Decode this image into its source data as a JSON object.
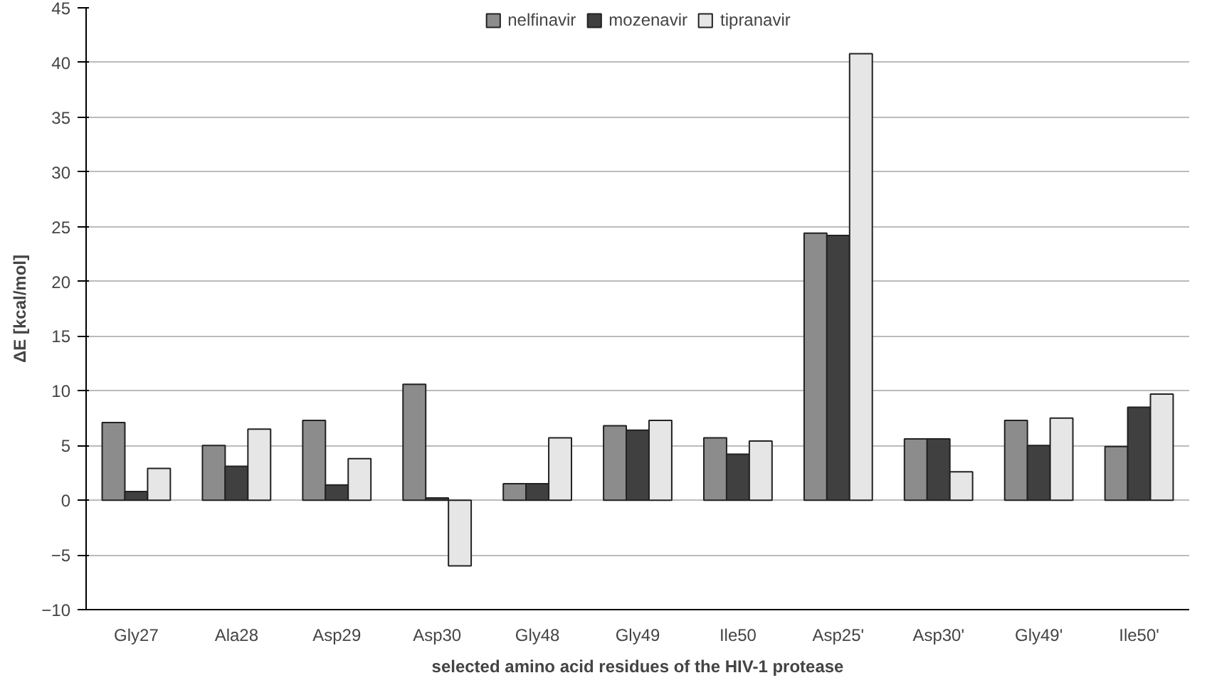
{
  "chart_data": {
    "type": "bar",
    "xlabel": "selected amino acid residues of the HIV-1 protease",
    "ylabel": "ΔE [kcal/mol]",
    "categories": [
      "Gly27",
      "Ala28",
      "Asp29",
      "Asp30",
      "Gly48",
      "Gly49",
      "Ile50",
      "Asp25'",
      "Asp30'",
      "Gly49'",
      "Ile50'"
    ],
    "series": [
      {
        "name": "nelfinavir",
        "color": "#8c8c8c",
        "values": [
          7.1,
          5.0,
          7.3,
          10.6,
          1.5,
          6.8,
          5.7,
          24.4,
          5.6,
          7.3,
          4.9
        ]
      },
      {
        "name": "mozenavir",
        "color": "#404040",
        "values": [
          0.8,
          3.1,
          1.4,
          0.2,
          1.5,
          6.4,
          4.2,
          24.2,
          5.6,
          5.0,
          8.5
        ]
      },
      {
        "name": "tipranavir",
        "color": "#e6e6e6",
        "values": [
          2.9,
          6.5,
          3.8,
          -6.0,
          5.7,
          7.3,
          5.4,
          40.8,
          2.6,
          7.5,
          9.7
        ]
      }
    ],
    "ylim": [
      -10,
      45
    ],
    "yticks": [
      -10,
      -5,
      0,
      5,
      10,
      15,
      20,
      25,
      30,
      35,
      40,
      45
    ],
    "grid": "y",
    "legend": "top"
  }
}
